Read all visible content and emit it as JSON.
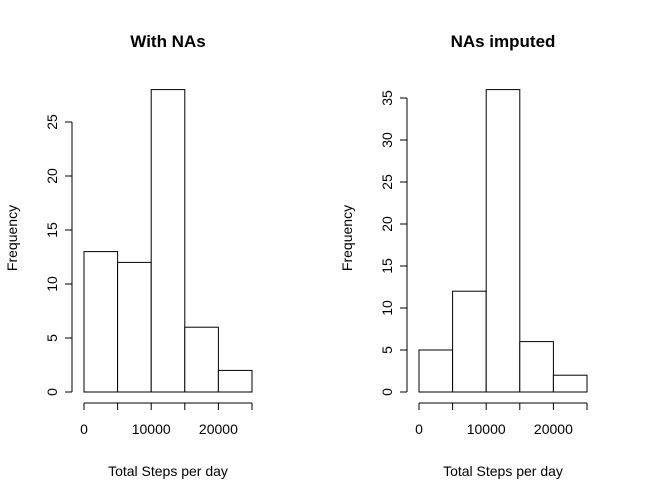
{
  "chart_data": [
    {
      "type": "bar",
      "title": "With NAs",
      "xlabel": "Total Steps per day",
      "ylabel": "Frequency",
      "bins": [
        [
          0,
          5000
        ],
        [
          5000,
          10000
        ],
        [
          10000,
          15000
        ],
        [
          15000,
          20000
        ],
        [
          20000,
          25000
        ]
      ],
      "values": [
        13,
        12,
        28,
        6,
        2
      ],
      "x_ticks": [
        0,
        5000,
        10000,
        15000,
        20000,
        25000
      ],
      "x_tick_labels": [
        "0",
        "",
        "10000",
        "",
        "20000",
        ""
      ],
      "y_ticks": [
        0,
        5,
        10,
        15,
        20,
        25
      ],
      "y_tick_labels": [
        "0",
        "5",
        "10",
        "15",
        "20",
        "25"
      ],
      "xlim": [
        0,
        25000
      ],
      "ylim": [
        0,
        28
      ],
      "grid": false
    },
    {
      "type": "bar",
      "title": "NAs imputed",
      "xlabel": "Total Steps per day",
      "ylabel": "Frequency",
      "bins": [
        [
          0,
          5000
        ],
        [
          5000,
          10000
        ],
        [
          10000,
          15000
        ],
        [
          15000,
          20000
        ],
        [
          20000,
          25000
        ]
      ],
      "values": [
        5,
        12,
        36,
        6,
        2
      ],
      "x_ticks": [
        0,
        5000,
        10000,
        15000,
        20000,
        25000
      ],
      "x_tick_labels": [
        "0",
        "",
        "10000",
        "",
        "20000",
        ""
      ],
      "y_ticks": [
        0,
        5,
        10,
        15,
        20,
        25,
        30,
        35
      ],
      "y_tick_labels": [
        "0",
        "5",
        "10",
        "15",
        "20",
        "25",
        "30",
        "35"
      ],
      "xlim": [
        0,
        25000
      ],
      "ylim": [
        0,
        36
      ],
      "grid": false
    }
  ]
}
